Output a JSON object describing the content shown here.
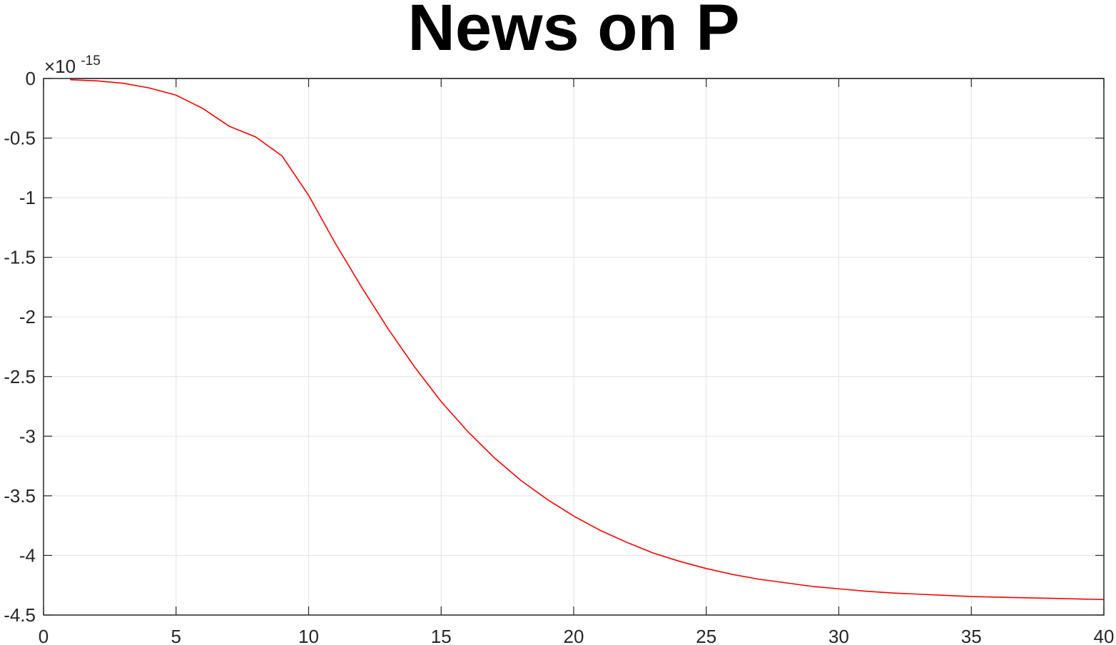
{
  "chart_data": {
    "type": "line",
    "title": "News on P",
    "xlabel": "",
    "ylabel": "",
    "xlim": [
      0,
      40
    ],
    "ylim": [
      -4.5,
      0
    ],
    "grid": true,
    "y_multiplier_base": "×10",
    "y_multiplier_exponent": "-15",
    "x_ticks": [
      "0",
      "5",
      "10",
      "15",
      "20",
      "25",
      "30",
      "35",
      "40"
    ],
    "x_tick_values": [
      0,
      5,
      10,
      15,
      20,
      25,
      30,
      35,
      40
    ],
    "y_ticks": [
      "0",
      "-0.5",
      "-1",
      "-1.5",
      "-2",
      "-2.5",
      "-3",
      "-3.5",
      "-4",
      "-4.5"
    ],
    "y_tick_values": [
      0,
      -0.5,
      -1,
      -1.5,
      -2,
      -2.5,
      -3,
      -3.5,
      -4,
      -4.5
    ],
    "x": [
      1,
      2,
      3,
      4,
      5,
      6,
      7,
      8,
      9,
      10,
      11,
      12,
      13,
      14,
      15,
      16,
      17,
      18,
      19,
      20,
      21,
      22,
      23,
      24,
      25,
      26,
      27,
      28,
      29,
      30,
      31,
      32,
      33,
      34,
      35,
      36,
      37,
      38,
      39,
      40
    ],
    "series": [
      {
        "color": "#ff0000",
        "values": [
          -0.01,
          -0.02,
          -0.04,
          -0.08,
          -0.14,
          -0.25,
          -0.4,
          -0.49,
          -0.65,
          -0.98,
          -1.38,
          -1.75,
          -2.1,
          -2.42,
          -2.71,
          -2.96,
          -3.18,
          -3.37,
          -3.53,
          -3.67,
          -3.79,
          -3.89,
          -3.98,
          -4.05,
          -4.11,
          -4.16,
          -4.2,
          -4.23,
          -4.26,
          -4.28,
          -4.3,
          -4.315,
          -4.325,
          -4.335,
          -4.345,
          -4.35,
          -4.355,
          -4.36,
          -4.365,
          -4.37
        ]
      },
      {
        "color": "#6a6ad8",
        "values": [
          0,
          0,
          0,
          0,
          0,
          0,
          0,
          0,
          0,
          0,
          0,
          0,
          0,
          0,
          0,
          0,
          0,
          0,
          0,
          0,
          0,
          0,
          0,
          0,
          0,
          0,
          0,
          0,
          0,
          0,
          0,
          0,
          0,
          0,
          0,
          0,
          0,
          0,
          0,
          0
        ]
      }
    ]
  }
}
